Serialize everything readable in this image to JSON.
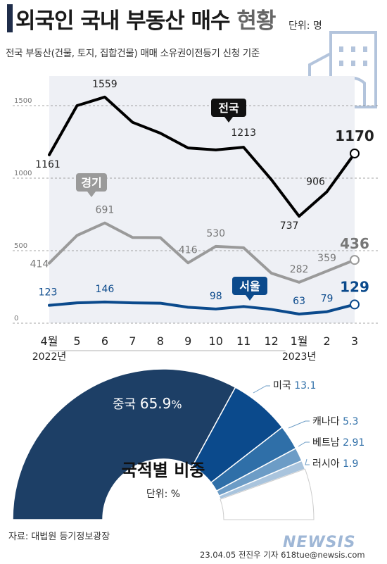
{
  "header": {
    "title_main": "외국인 국내 부동산 매수",
    "title_sub": "현황",
    "unit": "단위: 명",
    "basis": "전국 부동산(건물, 토지, 집합건물) 매매 소유권이전등기 신청 기준"
  },
  "chart_data": [
    {
      "type": "line",
      "categories": [
        "4월",
        "5",
        "6",
        "7",
        "8",
        "9",
        "10",
        "11",
        "12",
        "1월",
        "2",
        "3"
      ],
      "year_labels": [
        "2022년",
        "2023년"
      ],
      "y_ticks": [
        "0",
        "500",
        "1000",
        "1500"
      ],
      "ylim": [
        0,
        1700
      ],
      "grid": "dashed horizontal",
      "series": [
        {
          "name": "전국",
          "color": "#000000",
          "values": [
            1161,
            1500,
            1559,
            1385,
            1310,
            1208,
            1195,
            1213,
            990,
            737,
            906,
            1170
          ],
          "point_labels": [
            {
              "index": 0,
              "text": "1161"
            },
            {
              "index": 2,
              "text": "1559"
            },
            {
              "index": 7,
              "text": "1213"
            },
            {
              "index": 9,
              "text": "737"
            },
            {
              "index": 10,
              "text": "906"
            },
            {
              "index": 11,
              "text": "1170"
            }
          ]
        },
        {
          "name": "경기",
          "color": "#9a9a9a",
          "values": [
            414,
            605,
            691,
            591,
            590,
            416,
            530,
            520,
            345,
            282,
            359,
            436
          ],
          "point_labels": [
            {
              "index": 0,
              "text": "414"
            },
            {
              "index": 2,
              "text": "691"
            },
            {
              "index": 5,
              "text": "416"
            },
            {
              "index": 6,
              "text": "530"
            },
            {
              "index": 9,
              "text": "282"
            },
            {
              "index": 10,
              "text": "359"
            },
            {
              "index": 11,
              "text": "436"
            }
          ]
        },
        {
          "name": "서울",
          "color": "#0b4a8c",
          "values": [
            123,
            140,
            146,
            140,
            138,
            110,
            98,
            115,
            95,
            63,
            79,
            129
          ],
          "point_labels": [
            {
              "index": 0,
              "text": "123"
            },
            {
              "index": 2,
              "text": "146"
            },
            {
              "index": 6,
              "text": "98"
            },
            {
              "index": 9,
              "text": "63"
            },
            {
              "index": 10,
              "text": "79"
            },
            {
              "index": 11,
              "text": "129"
            }
          ]
        }
      ]
    },
    {
      "type": "pie",
      "title": "국적별 비중",
      "unit": "단위: %",
      "slices": [
        {
          "label": "중국",
          "value": 65.9,
          "value_text": "65.9",
          "suffix": "%",
          "color": "#1d3f66"
        },
        {
          "label": "미국",
          "value": 13.1,
          "value_text": "13.1",
          "suffix": "",
          "color": "#0b4a8c"
        },
        {
          "label": "캐나다",
          "value": 5.3,
          "value_text": "5.3",
          "suffix": "",
          "color": "#2f6fa8"
        },
        {
          "label": "베트남",
          "value": 2.91,
          "value_text": "2.91",
          "suffix": "",
          "color": "#6c9cc6"
        },
        {
          "label": "러시아",
          "value": 1.9,
          "value_text": "1.9",
          "suffix": "",
          "color": "#a9c4dd"
        }
      ]
    }
  ],
  "footer": {
    "source": "자료: 대법원 등기정보광장",
    "credit": "23.04.05 전진우 기자 618tue@newsis.com",
    "watermark": "NEWSIS"
  },
  "colors": {
    "title_bar": "#1f2d4a",
    "plot_bg": "#eef0f5",
    "building_icon": "#b3c4dc"
  },
  "icons": [
    "building-icon"
  ]
}
